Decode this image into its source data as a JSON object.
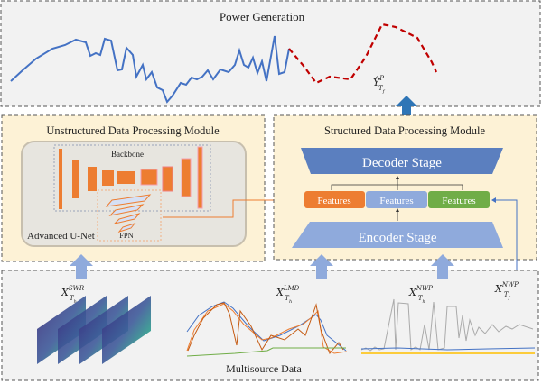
{
  "top": {
    "title": "Power Generation",
    "prediction_label": "Ŷ",
    "prediction_sup": "P",
    "prediction_sub": "T",
    "prediction_subsub": "f"
  },
  "unstructured": {
    "title": "Unstructured Data Processing Module",
    "backbone": "Backbone",
    "fpn": "FPN",
    "network": "Advanced U-Net"
  },
  "structured": {
    "title": "Structured Data Processing Module",
    "decoder": "Decoder Stage",
    "encoder": "Encoder Stage",
    "features": [
      {
        "label": "Features",
        "color": "#ed7d31"
      },
      {
        "label": "Features",
        "color": "#8faadc"
      },
      {
        "label": "Features",
        "color": "#70ad47"
      }
    ]
  },
  "bottom": {
    "title": "Multisource Data",
    "inputs": [
      {
        "base": "X",
        "sup": "SWR",
        "sub": "T",
        "subsub": "h"
      },
      {
        "base": "X",
        "sup": "LMD",
        "sub": "T",
        "subsub": "h"
      },
      {
        "base": "X",
        "sup": "NWP",
        "sub": "T",
        "subsub": "h"
      },
      {
        "base": "X",
        "sup": "NWP",
        "sub": "T",
        "subsub": "f"
      }
    ]
  },
  "colors": {
    "module_bg": "#fdf2d6",
    "panel_bg": "#f2f2f2",
    "decoder": "#5b7fbf",
    "encoder": "#8faadc",
    "history_line": "#4472c4",
    "forecast_line": "#c00000",
    "arrow_main": "#2e75b6",
    "arrow_light": "#8faadc"
  }
}
